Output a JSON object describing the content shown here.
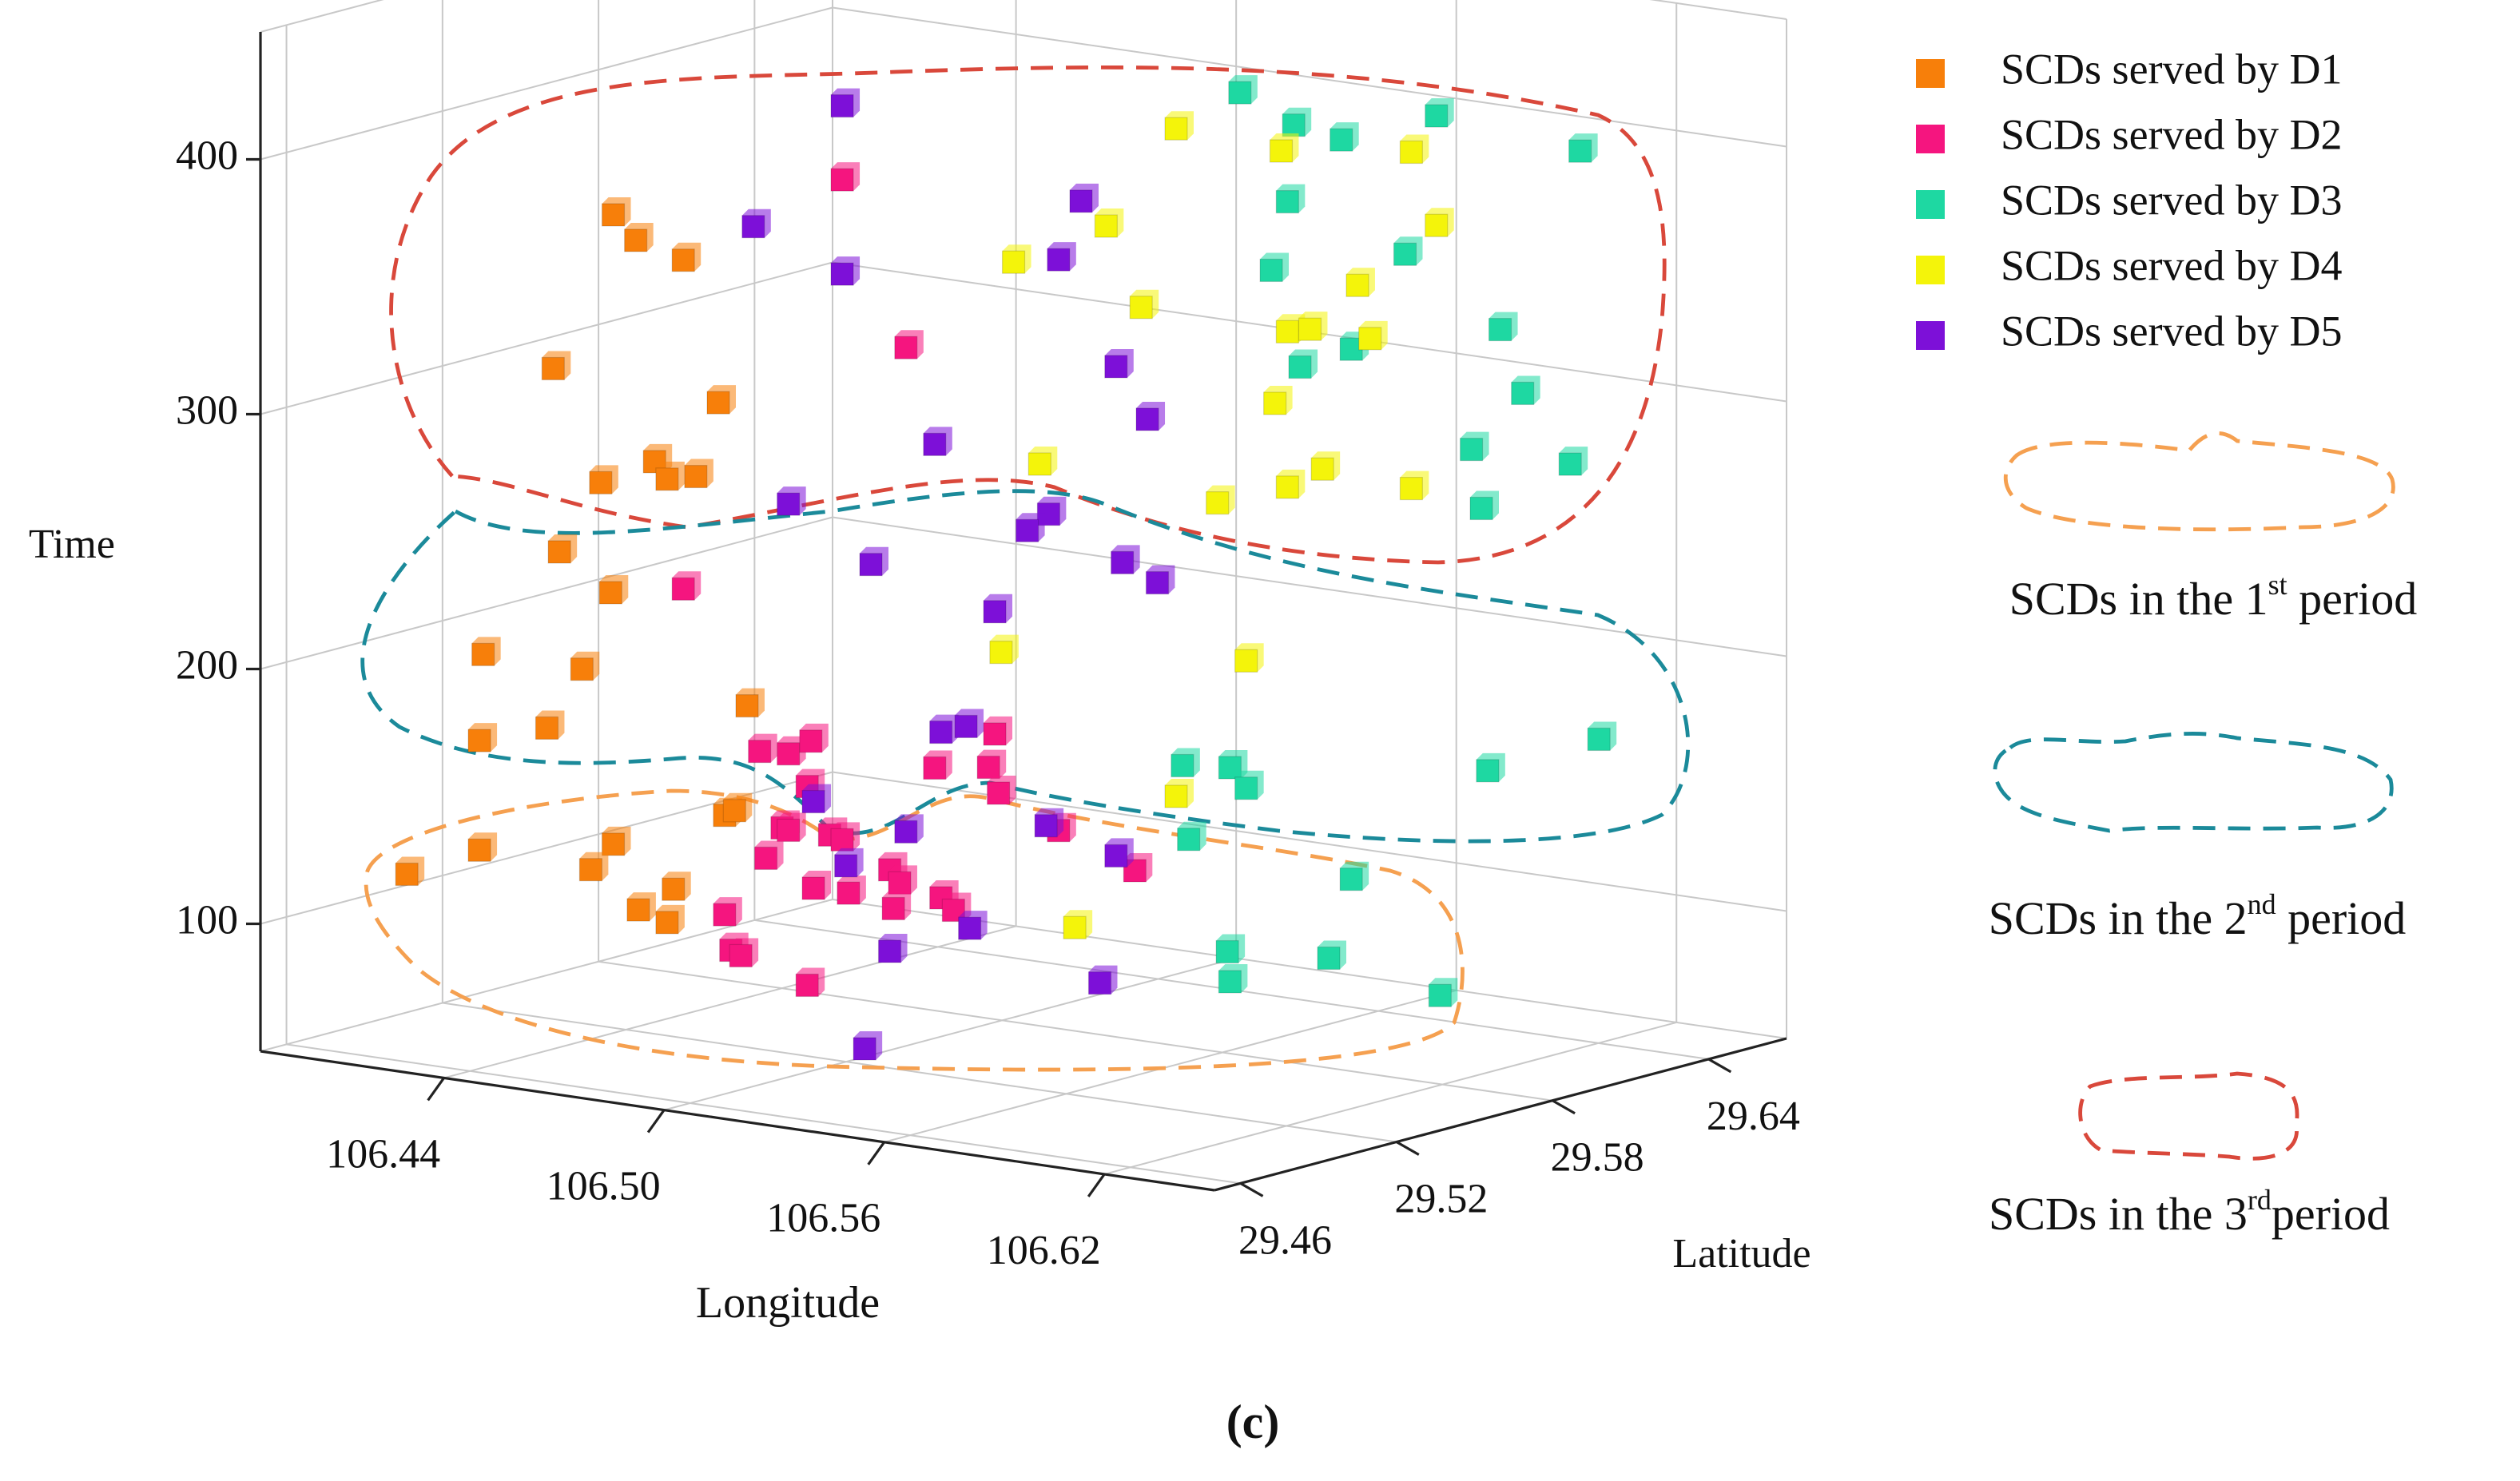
{
  "chart_data": {
    "type": "scatter3d",
    "xlabel": "Longitude",
    "ylabel": "Latitude",
    "zlabel": "Time",
    "xlim": [
      106.39,
      106.65
    ],
    "ylim": [
      29.45,
      29.67
    ],
    "zlim": [
      50,
      450
    ],
    "xticks": [
      106.44,
      {
        "value": 106.5,
        "label": "106.50"
      },
      106.56,
      106.62
    ],
    "yticks": [
      29.46,
      29.52,
      29.58,
      29.64
    ],
    "zticks": [
      100,
      200,
      300,
      400
    ],
    "grid": true,
    "series": [
      {
        "name": "SCDs served by D1",
        "color": "#f77f0a",
        "x": [
          106.45,
          106.454,
          106.462,
          106.44,
          106.468,
          106.448,
          106.457,
          106.459,
          106.464,
          106.441,
          106.45,
          106.428,
          106.445,
          106.427,
          106.439,
          106.473,
          106.415,
          106.427,
          106.45,
          106.446,
          106.454,
          106.46,
          106.459,
          106.469,
          106.471
        ],
        "y": [
          29.501,
          29.504,
          29.511,
          29.492,
          29.516,
          29.499,
          29.507,
          29.509,
          29.513,
          29.493,
          29.5,
          29.482,
          29.496,
          29.482,
          29.491,
          29.52,
          29.471,
          29.482,
          29.501,
          29.498,
          29.505,
          29.51,
          29.509,
          29.517,
          29.518
        ],
        "z": [
          377,
          367,
          359,
          317,
          303,
          272,
          280,
          273,
          274,
          245,
          229,
          205,
          199,
          171,
          176,
          184,
          119,
          128,
          130,
          120,
          104,
          112,
          99,
          141,
          143
        ]
      },
      {
        "name": "SCDs served by D2",
        "color": "#f5157f",
        "x": [
          106.489,
          106.5,
          106.462,
          106.475,
          106.48,
          106.484,
          106.483,
          106.479,
          106.48,
          106.476,
          106.487,
          106.469,
          106.484,
          106.489,
          106.497,
          106.499,
          106.498,
          106.505,
          106.514,
          106.515,
          106.516,
          106.506,
          106.508,
          106.47,
          106.472,
          106.483,
          106.526,
          106.539,
          106.49
        ],
        "y": [
          29.534,
          29.543,
          29.511,
          29.522,
          29.526,
          29.529,
          29.529,
          29.525,
          29.526,
          29.523,
          29.532,
          29.517,
          29.53,
          29.534,
          29.541,
          29.542,
          29.541,
          29.547,
          29.555,
          29.556,
          29.556,
          29.548,
          29.55,
          29.518,
          29.519,
          29.529,
          29.565,
          29.576,
          29.535
        ],
        "z": [
          390,
          324,
          230,
          166,
          165,
          170,
          152,
          136,
          135,
          124,
          133,
          102,
          112,
          131,
          119,
          114,
          104,
          159,
          159,
          172,
          149,
          108,
          103,
          88,
          86,
          74,
          134,
          118,
          110
        ]
      },
      {
        "name": "SCDs served by D3",
        "color": "#1ed8a2",
        "x": [
          106.557,
          106.566,
          106.574,
          106.59,
          106.615,
          106.565,
          106.585,
          106.562,
          106.567,
          106.576,
          106.601,
          106.605,
          106.596,
          106.613,
          106.598,
          106.618,
          106.599,
          106.555,
          106.547,
          106.558,
          106.548,
          106.576,
          106.555,
          106.572,
          106.555,
          106.591
        ],
        "y": [
          29.591,
          29.599,
          29.606,
          29.62,
          29.64,
          29.598,
          29.615,
          29.596,
          29.6,
          29.607,
          29.629,
          29.632,
          29.625,
          29.639,
          29.626,
          29.643,
          29.627,
          29.59,
          29.583,
          29.592,
          29.584,
          29.607,
          29.589,
          29.604,
          29.59,
          29.62
        ],
        "z": [
          423,
          410,
          404,
          413,
          399,
          380,
          359,
          353,
          315,
          322,
          329,
          304,
          282,
          276,
          259,
          168,
          156,
          158,
          159,
          150,
          130,
          114,
          86,
          83,
          74,
          68
        ]
      },
      {
        "name": "SCDs served by D4",
        "color": "#f4f40a",
        "x": [
          106.546,
          106.564,
          106.586,
          106.534,
          106.59,
          106.518,
          106.54,
          106.577,
          106.565,
          106.569,
          106.579,
          106.563,
          106.523,
          106.553,
          106.565,
          106.571,
          106.586,
          106.516,
          106.558,
          106.546,
          106.529
        ],
        "y": [
          29.582,
          29.597,
          29.616,
          29.572,
          29.62,
          29.559,
          29.577,
          29.608,
          29.598,
          29.601,
          29.61,
          29.596,
          29.562,
          29.588,
          29.598,
          29.603,
          29.616,
          29.557,
          29.592,
          29.582,
          29.567
        ],
        "z": [
          409,
          400,
          399,
          371,
          370,
          357,
          339,
          347,
          329,
          330,
          326,
          301,
          278,
          262,
          268,
          275,
          267,
          204,
          200,
          147,
          96
        ]
      },
      {
        "name": "SCDs served by D5",
        "color": "#7d10d8",
        "x": [
          106.489,
          106.474,
          106.489,
          106.53,
          106.526,
          106.536,
          106.541,
          106.505,
          106.48,
          106.524,
          106.521,
          106.494,
          106.537,
          106.543,
          106.515,
          106.506,
          106.51,
          106.484,
          106.49,
          106.5,
          106.524,
          106.536,
          106.511,
          106.497,
          106.533,
          106.493
        ],
        "y": [
          29.534,
          29.521,
          29.534,
          29.568,
          29.565,
          29.573,
          29.578,
          29.547,
          29.526,
          29.564,
          29.56,
          29.538,
          29.574,
          29.579,
          29.556,
          29.548,
          29.552,
          29.53,
          29.534,
          29.543,
          29.563,
          29.573,
          29.552,
          29.541,
          29.571,
          29.537
        ],
        "z": [
          419,
          372,
          353,
          381,
          358,
          316,
          295,
          286,
          263,
          258,
          252,
          239,
          239,
          231,
          220,
          173,
          175,
          146,
          121,
          134,
          136,
          124,
          96,
          87,
          74,
          49
        ]
      }
    ],
    "period_legend": [
      {
        "prefix": "SCDs in the 1",
        "sup": "st",
        "suffix": " period"
      },
      {
        "prefix": "SCDs in the 2",
        "sup": "nd",
        "suffix": " period"
      },
      {
        "prefix": "SCDs in the 3",
        "sup": "rd",
        "suffix": "period"
      }
    ],
    "caption": "(c)"
  }
}
